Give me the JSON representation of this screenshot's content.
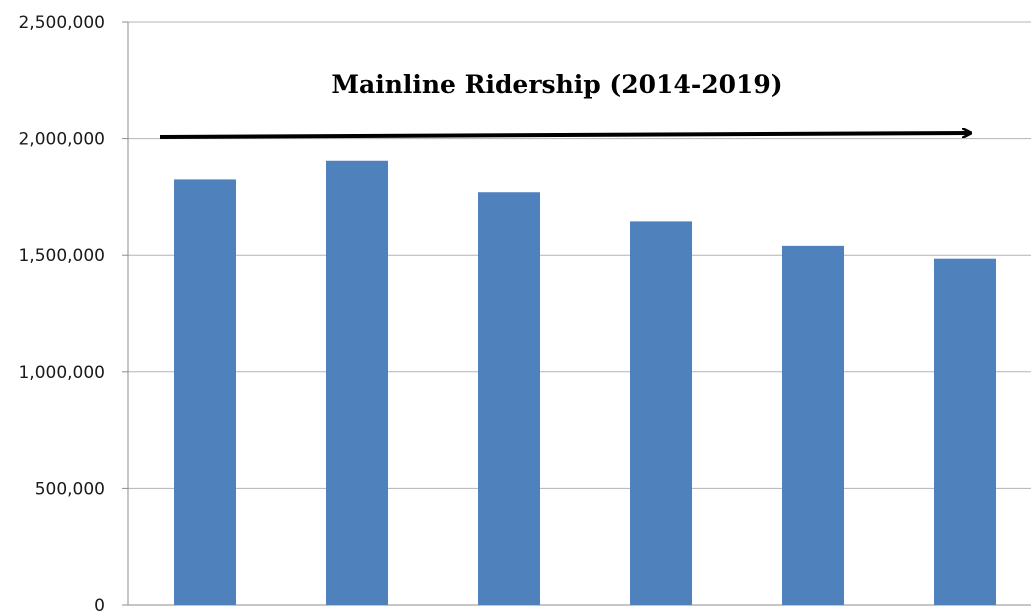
{
  "chart_data": {
    "type": "bar",
    "title": "Mainline Ridership (2014-2019)",
    "xlabel": "",
    "ylabel": "",
    "categories": [
      "",
      "",
      "",
      "",
      "",
      ""
    ],
    "values": [
      1825000,
      1905000,
      1770000,
      1645000,
      1540000,
      1485000
    ],
    "ylim": [
      0,
      2500000
    ],
    "yticks": [
      0,
      500000,
      1000000,
      1500000,
      2000000,
      2500000
    ],
    "ytick_labels": [
      "0",
      "500,000",
      "1,000,000",
      "1,500,000",
      "2,000,000",
      "2,500,000"
    ],
    "grid": true,
    "legend": "none",
    "annotations": [
      {
        "type": "arrow",
        "direction": "right",
        "y_value": 2000000
      }
    ]
  },
  "colors": {
    "bar": "#4f81bd",
    "grid": "#b3b3b3",
    "axis": "#8c8c8c",
    "arrow": "#000000"
  }
}
